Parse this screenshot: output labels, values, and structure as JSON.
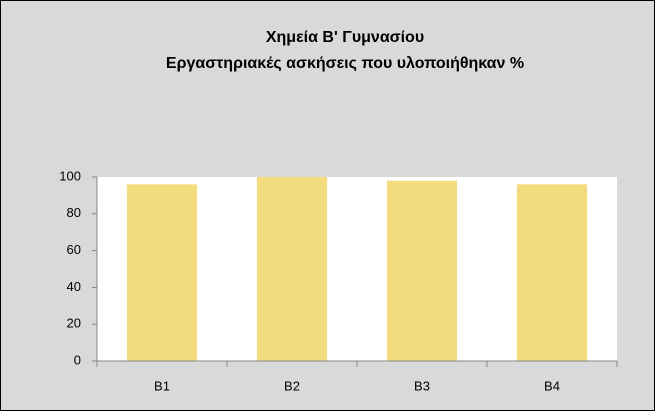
{
  "chart_data": {
    "type": "bar",
    "title": [
      "Χημεία Β' Γυμνασίου",
      "Εργαστηριακές ασκήσεις που υλοποιήθηκαν %"
    ],
    "categories": [
      "B1",
      "B2",
      "B3",
      "B4"
    ],
    "values": [
      96,
      100,
      98,
      96
    ],
    "color": "#f2dc7e",
    "ylim": [
      0,
      100
    ],
    "yticks": [
      0,
      20,
      40,
      60,
      80,
      100
    ],
    "grid": false
  }
}
